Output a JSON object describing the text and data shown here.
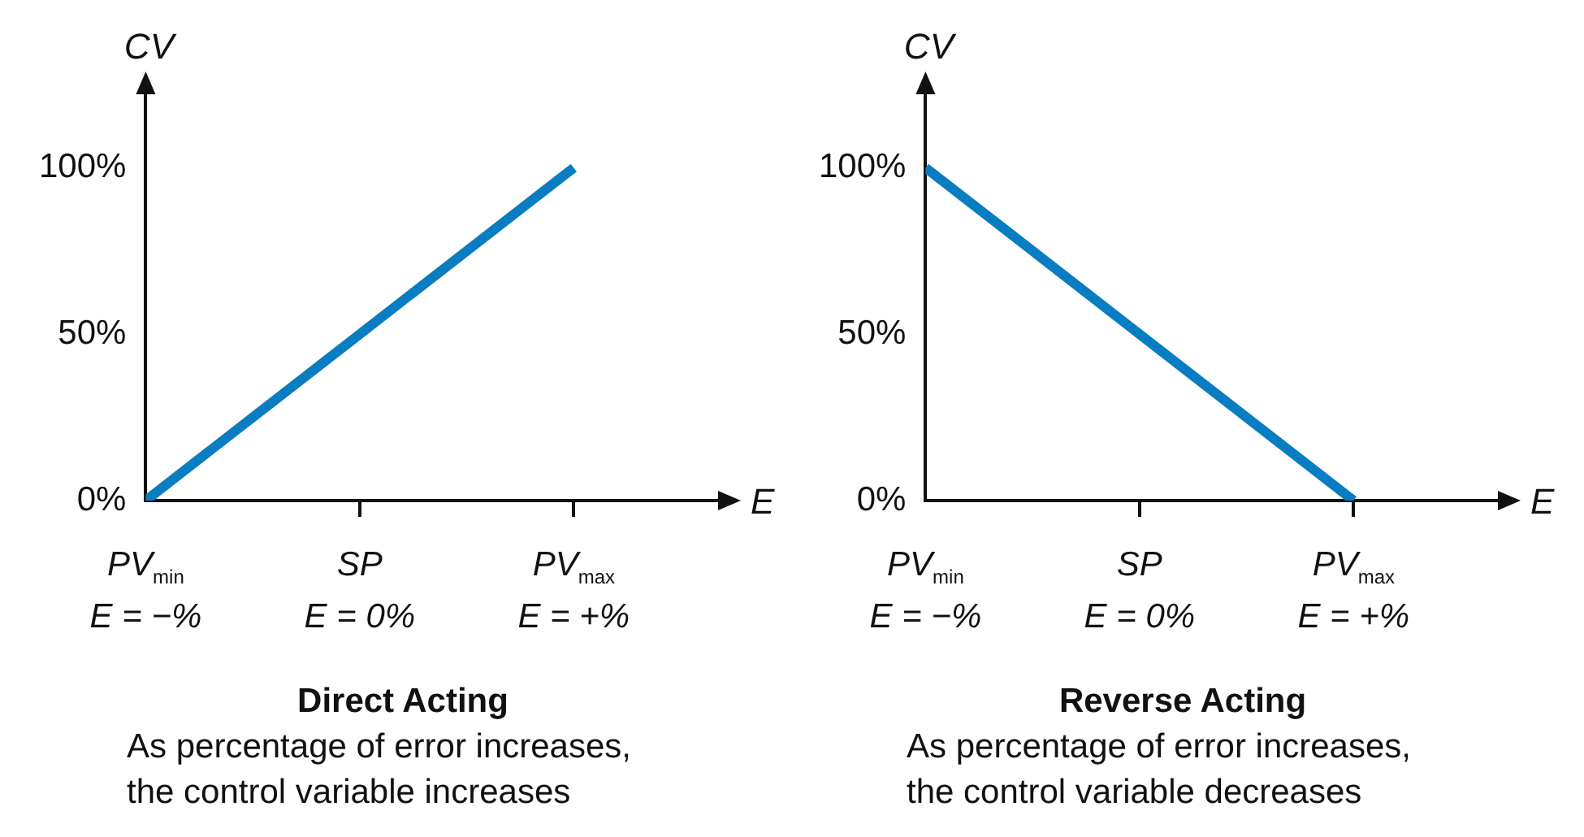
{
  "chart_data": [
    {
      "type": "line",
      "title": "Direct Acting",
      "xlabel": "E",
      "ylabel": "CV",
      "categories": [
        "PV$_{min}$\nE = −%",
        "SP\nE = 0%",
        "PV$_{max}$\nE = +%"
      ],
      "series": [
        {
          "color": "#0a7dc2",
          "values": [
            0,
            50,
            100
          ]
        }
      ],
      "ylim": [
        0,
        125
      ],
      "yticks": [
        {
          "value": 0,
          "label": "0%"
        },
        {
          "value": 50,
          "label": "50%"
        },
        {
          "value": 100,
          "label": "100%"
        }
      ],
      "marker": "none",
      "line_style": "solid",
      "annotations": [
        "As percentage of error increases, the control variable increases"
      ]
    },
    {
      "type": "line",
      "title": "Reverse Acting",
      "xlabel": "E",
      "ylabel": "CV",
      "categories": [
        "PV$_{min}$\nE = −%",
        "SP\nE = 0%",
        "PV$_{max}$\nE = +%"
      ],
      "series": [
        {
          "color": "#0a7dc2",
          "values": [
            100,
            50,
            0
          ]
        }
      ],
      "ylim": [
        0,
        125
      ],
      "yticks": [
        {
          "value": 0,
          "label": "0%"
        },
        {
          "value": 50,
          "label": "50%"
        },
        {
          "value": 100,
          "label": "100%"
        }
      ],
      "marker": "none",
      "line_style": "solid",
      "annotations": [
        "As percentage of error increases, the control variable decreases"
      ]
    }
  ]
}
